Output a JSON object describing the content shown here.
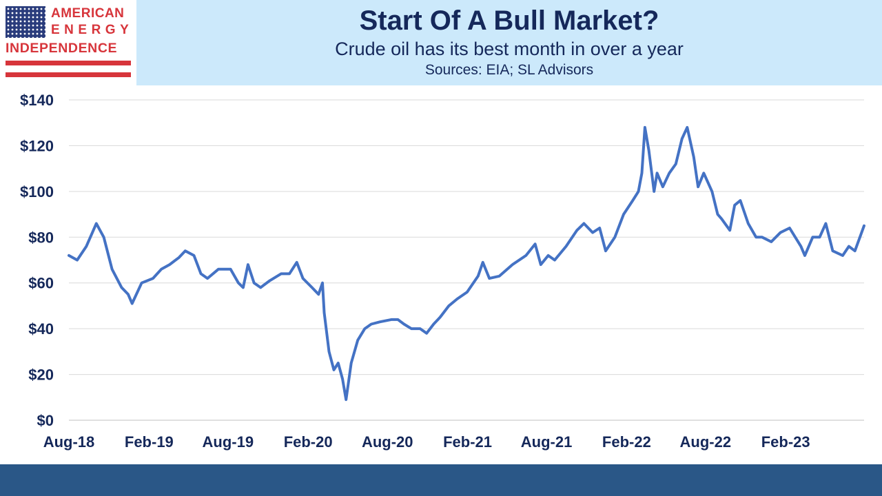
{
  "logo": {
    "line1": "AMERICAN",
    "line2": "ENERGY",
    "line3": "INDEPENDENCE"
  },
  "header": {
    "title": "Start Of A Bull Market?",
    "subtitle": "Crude oil has its best month in over a year",
    "source": "Sources: EIA; SL Advisors"
  },
  "colors": {
    "header_bg": "#cce9fb",
    "text": "#15285a",
    "line": "#4472c4",
    "footer": "#2a5787",
    "logo_red": "#d7353b",
    "logo_blue": "#2a3c7c"
  },
  "chart_data": {
    "type": "line",
    "title": "Start Of A Bull Market?",
    "subtitle": "Crude oil has its best month in over a year",
    "xlabel": "",
    "ylabel": "",
    "ylim": [
      0,
      140
    ],
    "y_ticks": [
      "$0",
      "$20",
      "$40",
      "$60",
      "$80",
      "$100",
      "$120",
      "$140"
    ],
    "y_tick_values": [
      0,
      20,
      40,
      60,
      80,
      100,
      120,
      140
    ],
    "x_ticks": [
      "Aug-18",
      "Feb-19",
      "Aug-19",
      "Feb-20",
      "Aug-20",
      "Feb-21",
      "Aug-21",
      "Feb-22",
      "Aug-22",
      "Feb-23"
    ],
    "x_tick_values": [
      "2018-08-01",
      "2019-02-01",
      "2019-08-01",
      "2020-02-01",
      "2020-08-01",
      "2021-02-01",
      "2021-08-01",
      "2022-02-01",
      "2022-08-01",
      "2023-02-01"
    ],
    "xlim": [
      "2018-08-01",
      "2023-07-31"
    ],
    "grid": "horizontal",
    "series": [
      {
        "x": [
          "2018-08-01",
          "2018-08-20",
          "2018-09-10",
          "2018-10-03",
          "2018-10-20",
          "2018-11-08",
          "2018-11-30",
          "2018-12-15",
          "2018-12-24",
          "2019-01-15",
          "2019-02-10",
          "2019-03-01",
          "2019-03-20",
          "2019-04-10",
          "2019-04-25",
          "2019-05-15",
          "2019-05-31",
          "2019-06-15",
          "2019-07-10",
          "2019-08-07",
          "2019-08-25",
          "2019-09-05",
          "2019-09-16",
          "2019-09-30",
          "2019-10-15",
          "2019-11-05",
          "2019-12-01",
          "2019-12-20",
          "2020-01-06",
          "2020-01-20",
          "2020-02-10",
          "2020-02-25",
          "2020-03-05",
          "2020-03-09",
          "2020-03-20",
          "2020-03-31",
          "2020-04-10",
          "2020-04-20",
          "2020-04-28",
          "2020-05-10",
          "2020-05-25",
          "2020-06-10",
          "2020-06-25",
          "2020-07-15",
          "2020-08-10",
          "2020-08-25",
          "2020-09-08",
          "2020-09-25",
          "2020-10-15",
          "2020-10-30",
          "2020-11-15",
          "2020-11-30",
          "2020-12-20",
          "2021-01-08",
          "2021-01-31",
          "2021-02-25",
          "2021-03-08",
          "2021-03-23",
          "2021-04-15",
          "2021-05-15",
          "2021-06-15",
          "2021-07-06",
          "2021-07-19",
          "2021-08-05",
          "2021-08-20",
          "2021-09-15",
          "2021-10-10",
          "2021-10-26",
          "2021-11-15",
          "2021-12-01",
          "2021-12-15",
          "2022-01-05",
          "2022-01-25",
          "2022-02-15",
          "2022-02-28",
          "2022-03-08",
          "2022-03-15",
          "2022-03-24",
          "2022-04-05",
          "2022-04-12",
          "2022-04-25",
          "2022-05-10",
          "2022-05-25",
          "2022-06-08",
          "2022-06-20",
          "2022-07-05",
          "2022-07-15",
          "2022-07-28",
          "2022-08-16",
          "2022-08-29",
          "2022-09-07",
          "2022-09-26",
          "2022-10-07",
          "2022-10-20",
          "2022-11-07",
          "2022-11-25",
          "2022-12-09",
          "2022-12-30",
          "2023-01-20",
          "2023-02-10",
          "2023-03-08",
          "2023-03-17",
          "2023-04-04",
          "2023-04-20",
          "2023-05-04",
          "2023-05-20",
          "2023-06-12",
          "2023-06-26",
          "2023-07-10",
          "2023-07-31"
        ],
        "values": [
          72,
          70,
          76,
          86,
          80,
          66,
          58,
          55,
          51,
          60,
          62,
          66,
          68,
          71,
          74,
          72,
          64,
          62,
          66,
          66,
          60,
          58,
          68,
          60,
          58,
          61,
          64,
          64,
          69,
          62,
          58,
          55,
          60,
          47,
          30,
          22,
          25,
          18,
          9,
          25,
          35,
          40,
          42,
          43,
          44,
          44,
          42,
          40,
          40,
          38,
          42,
          45,
          50,
          53,
          56,
          63,
          69,
          62,
          63,
          68,
          72,
          77,
          68,
          72,
          70,
          76,
          83,
          86,
          82,
          84,
          74,
          80,
          90,
          96,
          100,
          108,
          128,
          118,
          100,
          108,
          102,
          108,
          112,
          123,
          128,
          115,
          102,
          108,
          100,
          90,
          88,
          83,
          94,
          96,
          86,
          80,
          80,
          78,
          82,
          84,
          76,
          72,
          80,
          80,
          86,
          74,
          72,
          76,
          74,
          85
        ]
      }
    ]
  }
}
